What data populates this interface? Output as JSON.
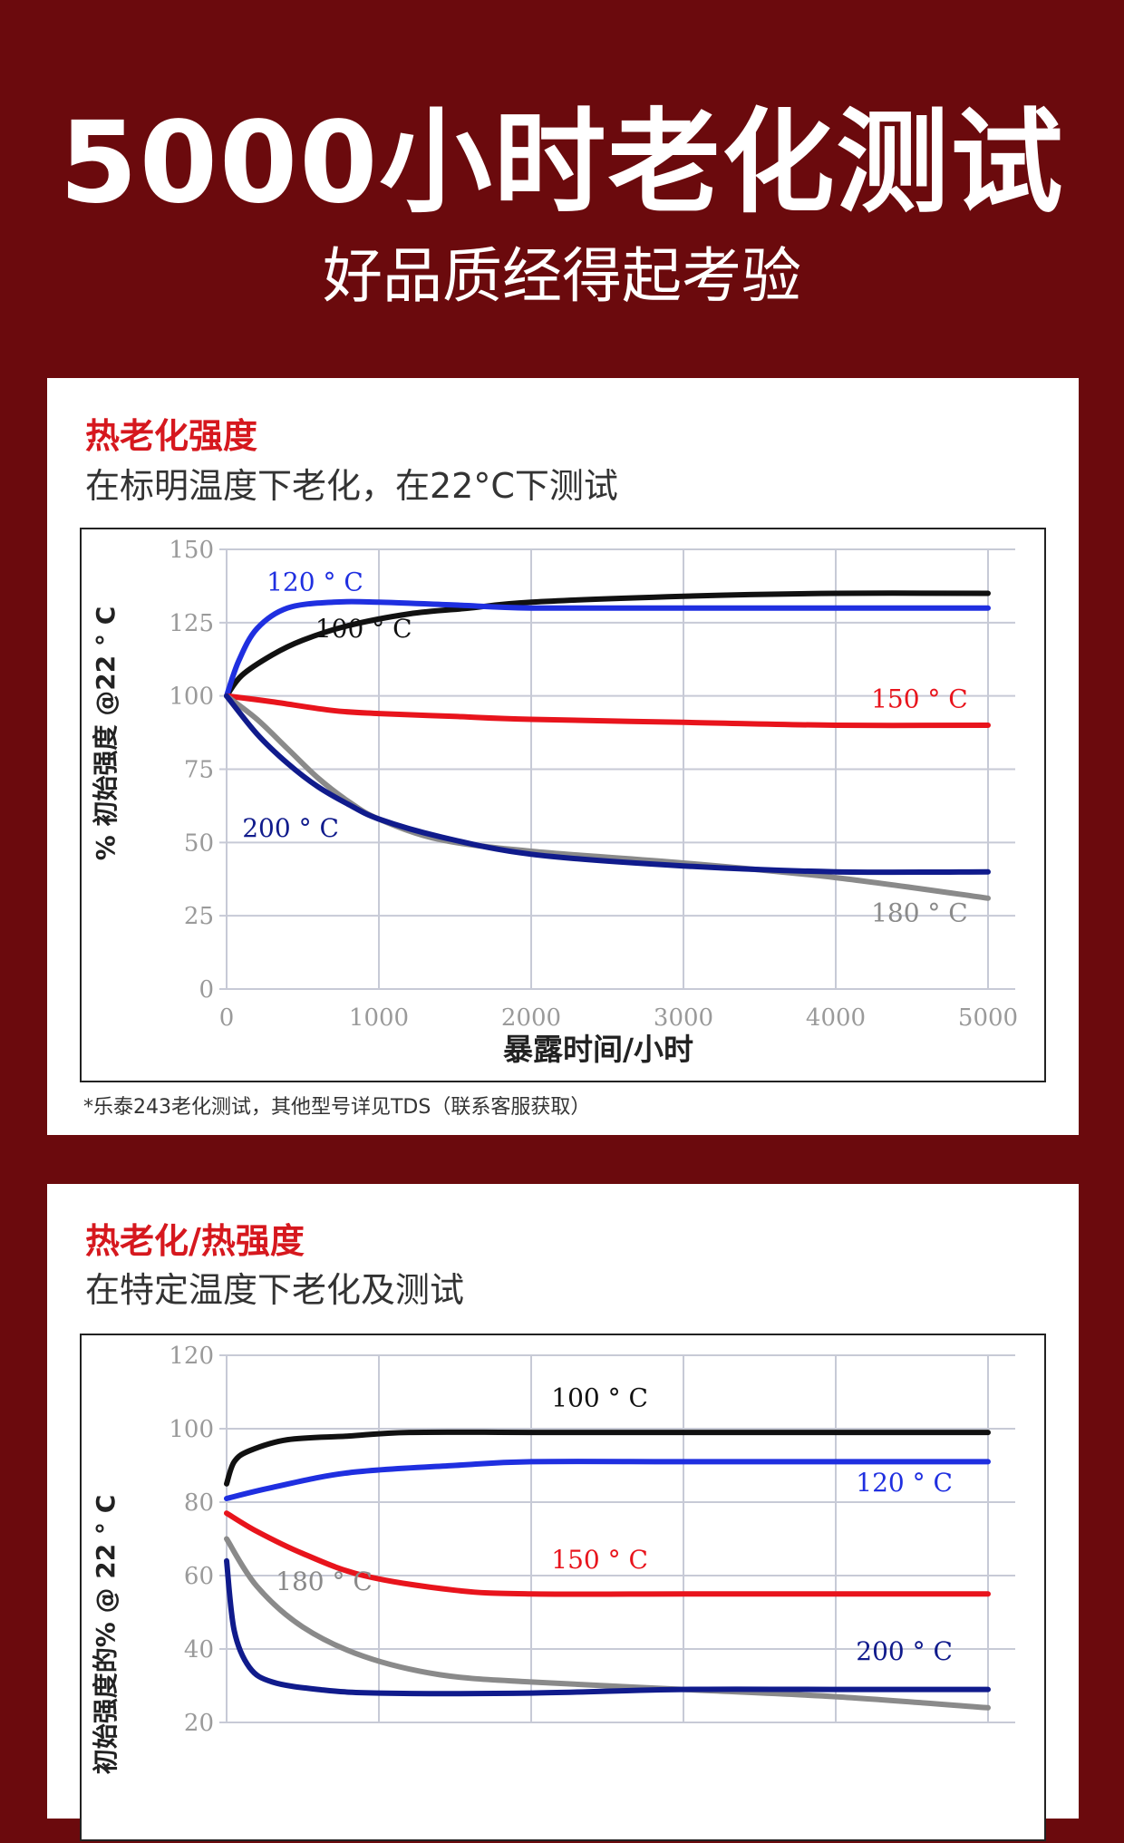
{
  "header": {
    "title": "5000小时老化测试",
    "subtitle": "好品质经得起考验"
  },
  "charts": [
    {
      "card_title": "热老化强度",
      "card_desc": "在标明温度下老化，在22°C下测试",
      "footnote": "*乐泰243老化测试，其他型号详见TDS（联系客服获取）"
    },
    {
      "card_title": "热老化/热强度",
      "card_desc": "在特定温度下老化及测试"
    }
  ],
  "chart_data": [
    {
      "type": "line",
      "xlabel": "暴露时间/小时",
      "ylabel": "% 初始强度 @22 ° C",
      "xlim": [
        0,
        5000
      ],
      "ylim": [
        0,
        150
      ],
      "xticks": [
        0,
        1000,
        2000,
        3000,
        4000,
        5000
      ],
      "yticks": [
        0,
        25,
        50,
        75,
        100,
        125,
        150
      ],
      "grid": true,
      "series": [
        {
          "name": "100 ° C",
          "color": "#111111",
          "label_at": [
            900,
            120
          ],
          "x": [
            0,
            100,
            300,
            500,
            800,
            1200,
            1600,
            2000,
            3000,
            4000,
            5000
          ],
          "y": [
            100,
            107,
            114,
            119,
            124,
            128,
            130,
            132,
            134,
            135,
            135
          ]
        },
        {
          "name": "120 ° C",
          "color": "#1f2fe0",
          "label_at": [
            580,
            136
          ],
          "x": [
            0,
            80,
            200,
            400,
            700,
            1000,
            1500,
            2000,
            3000,
            4000,
            5000
          ],
          "y": [
            100,
            112,
            123,
            130,
            132,
            132,
            131,
            130,
            130,
            130,
            130
          ]
        },
        {
          "name": "150 ° C",
          "color": "#e8141c",
          "label_at": [
            4550,
            96
          ],
          "x": [
            0,
            300,
            700,
            1000,
            1500,
            2000,
            3000,
            4000,
            5000
          ],
          "y": [
            100,
            98,
            95,
            94,
            93,
            92,
            91,
            90,
            90
          ]
        },
        {
          "name": "180 ° C",
          "color": "#8a8a8a",
          "label_at": [
            4550,
            23
          ],
          "x": [
            0,
            200,
            400,
            600,
            800,
            1000,
            1400,
            2000,
            3000,
            4000,
            5000
          ],
          "y": [
            100,
            92,
            82,
            72,
            64,
            58,
            51,
            47,
            43,
            38,
            31
          ]
        },
        {
          "name": "200 ° C",
          "color": "#101b8c",
          "label_at": [
            420,
            52
          ],
          "x": [
            0,
            200,
            400,
            600,
            800,
            1000,
            1400,
            2000,
            3000,
            4000,
            5000
          ],
          "y": [
            100,
            87,
            77,
            69,
            63,
            58,
            52,
            46,
            42,
            40,
            40
          ]
        }
      ]
    },
    {
      "type": "line",
      "ylabel": "初始强度的% @ 22 ° C",
      "xlim": [
        0,
        5000
      ],
      "ylim": [
        20,
        120
      ],
      "xticks": [
        0,
        1000,
        2000,
        3000,
        4000,
        5000
      ],
      "yticks": [
        20,
        40,
        60,
        80,
        100,
        120
      ],
      "grid": true,
      "series": [
        {
          "name": "100 ° C",
          "color": "#111111",
          "label_at": [
            2450,
            106
          ],
          "x": [
            0,
            50,
            150,
            400,
            800,
            1200,
            2000,
            3000,
            4000,
            5000
          ],
          "y": [
            85,
            91,
            94,
            97,
            98,
            99,
            99,
            99,
            99,
            99
          ]
        },
        {
          "name": "120 ° C",
          "color": "#1f2fe0",
          "label_at": [
            4450,
            83
          ],
          "x": [
            0,
            300,
            800,
            1500,
            2000,
            3000,
            4000,
            5000
          ],
          "y": [
            81,
            84,
            88,
            90,
            91,
            91,
            91,
            91
          ]
        },
        {
          "name": "150 ° C",
          "color": "#e8141c",
          "label_at": [
            2450,
            62
          ],
          "x": [
            0,
            200,
            500,
            900,
            1500,
            2000,
            3000,
            4000,
            5000
          ],
          "y": [
            77,
            72,
            66,
            60,
            56,
            55,
            55,
            55,
            55
          ]
        },
        {
          "name": "180 ° C",
          "color": "#8a8a8a",
          "label_at": [
            640,
            56
          ],
          "x": [
            0,
            200,
            500,
            900,
            1400,
            2000,
            3000,
            4000,
            5000
          ],
          "y": [
            70,
            57,
            46,
            38,
            33,
            31,
            29,
            27,
            24
          ]
        },
        {
          "name": "200 ° C",
          "color": "#101b8c",
          "label_at": [
            4450,
            37
          ],
          "x": [
            0,
            50,
            150,
            300,
            600,
            1000,
            2000,
            3000,
            4000,
            5000
          ],
          "y": [
            64,
            45,
            35,
            31,
            29,
            28,
            28,
            29,
            29,
            29
          ]
        }
      ]
    }
  ]
}
